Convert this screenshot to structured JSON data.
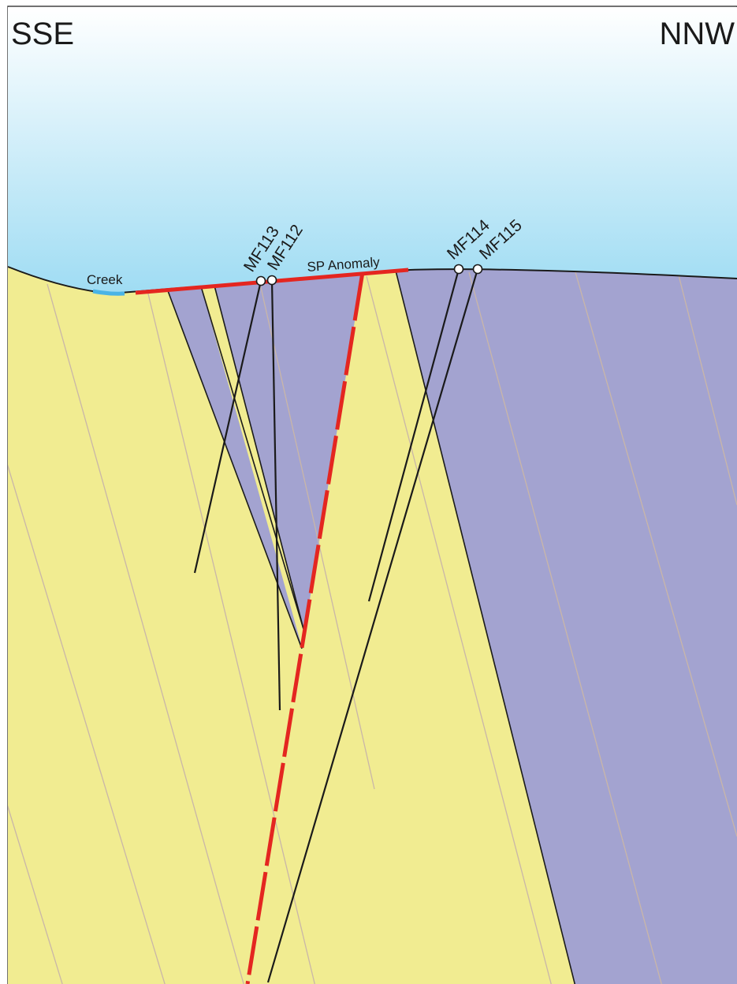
{
  "orientation": {
    "left": "SSE",
    "right": "NNW"
  },
  "features": {
    "creek": "Creek",
    "sp_anomaly": "SP Anomaly"
  },
  "drillholes": [
    {
      "name": "MF113"
    },
    {
      "name": "MF112"
    },
    {
      "name": "MF114"
    },
    {
      "name": "MF115"
    }
  ],
  "colors": {
    "sky_top": "#ffffff",
    "sky_bottom": "#9fdcf3",
    "unit_yellow": "#f1ec91",
    "unit_purple": "#a3a3d0",
    "sp_anomaly": "#e42620",
    "creek": "#4ab4e6",
    "bedding": "#c9b6a8",
    "hole": "#1a1a1a"
  }
}
